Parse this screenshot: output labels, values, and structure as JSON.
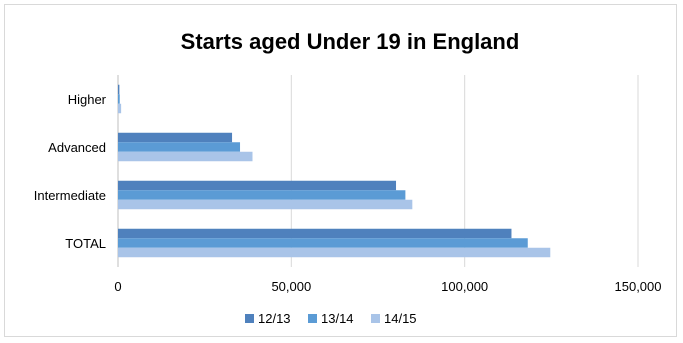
{
  "chart_data": {
    "type": "bar",
    "orientation": "horizontal",
    "title": "Starts aged Under 19 in England",
    "categories": [
      "Higher",
      "Advanced",
      "Intermediate",
      "TOTAL"
    ],
    "series": [
      {
        "name": "12/13",
        "color": "#4f81bd",
        "values": [
          400,
          32900,
          80200,
          113500
        ]
      },
      {
        "name": "13/14",
        "color": "#5b9bd5",
        "values": [
          500,
          35200,
          82900,
          118200
        ]
      },
      {
        "name": "14/15",
        "color": "#a9c4e8",
        "values": [
          900,
          38800,
          84900,
          124700
        ]
      }
    ],
    "xlim": [
      0,
      150000
    ],
    "xticks": [
      0,
      50000,
      100000,
      150000
    ],
    "xtick_labels": [
      "0",
      "50,000",
      "100,000",
      "150,000"
    ],
    "grid": true,
    "legend_position": "bottom",
    "colors": {
      "gridline": "#d9d9d9",
      "axis": "#bfbfbf"
    }
  }
}
